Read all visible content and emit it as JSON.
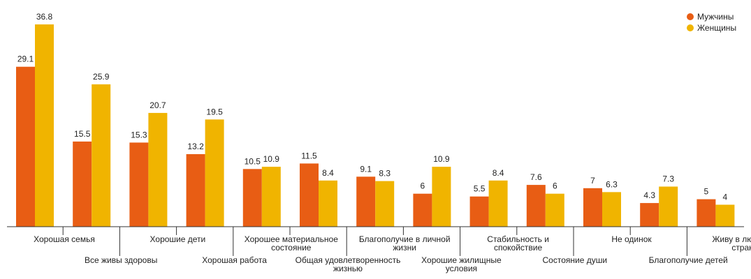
{
  "chart_data": {
    "type": "bar",
    "categories": [
      [
        "Хорошая семья"
      ],
      [
        "Все живы здоровы"
      ],
      [
        "Хорошие дети"
      ],
      [
        "Хорошая работа"
      ],
      [
        "Хорошее материальное",
        "состояние"
      ],
      [
        "Общая удовлетворенность",
        "жизнью"
      ],
      [
        "Благополучие в личной",
        "жизни"
      ],
      [
        "Хорошие жилищные",
        "условия"
      ],
      [
        "Стабильность и",
        "спокойствие"
      ],
      [
        "Состояние души"
      ],
      [
        "Не одинок"
      ],
      [
        "Благополучие детей"
      ],
      [
        "Живу в любимой",
        "стране"
      ]
    ],
    "series": [
      {
        "name": "Мужчины",
        "color": "#e85d14",
        "values": [
          29.1,
          15.5,
          15.3,
          13.2,
          10.5,
          11.5,
          9.1,
          6,
          5.5,
          7.6,
          7,
          4.3,
          5
        ],
        "labels": [
          "29.1",
          "15.5",
          "15.3",
          "13.2",
          "10.5",
          "11.5",
          "9.1",
          "6",
          "5.5",
          "7.6",
          "7",
          "4.3",
          "5"
        ]
      },
      {
        "name": "Женщины",
        "color": "#f0b400",
        "values": [
          36.8,
          25.9,
          20.7,
          19.5,
          10.9,
          8.4,
          8.3,
          10.9,
          8.4,
          6,
          6.3,
          7.3,
          4
        ],
        "labels": [
          "36.8",
          "25.9",
          "20.7",
          "19.5",
          "10.9",
          "8.4",
          "8.3",
          "10.9",
          "8.4",
          "6",
          "6.3",
          "7.3",
          "4"
        ]
      }
    ],
    "ylim": [
      0,
      40
    ],
    "grid": false,
    "legend": "top-right",
    "title": "",
    "xlabel": "",
    "ylabel": ""
  }
}
